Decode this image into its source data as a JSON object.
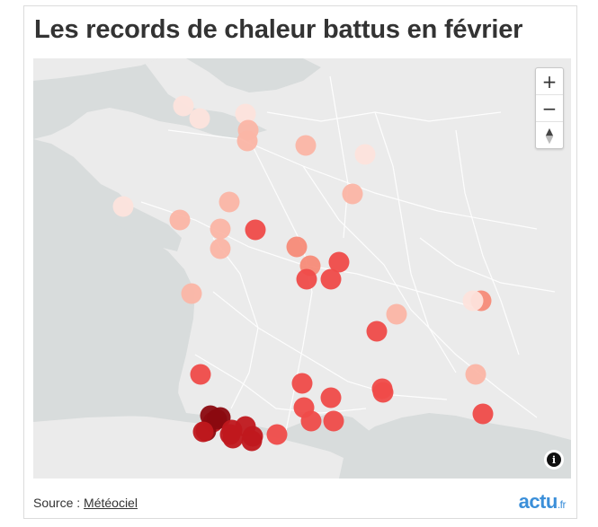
{
  "title": "Les records de chaleur battus en février",
  "footer": {
    "source_prefix": "Source :",
    "source_link": "Météociel"
  },
  "logo": {
    "main": "actu",
    "suffix": ".fr"
  },
  "map": {
    "controls": {
      "zoom_in": "+",
      "zoom_out": "−",
      "compass_icon": "compass-icon",
      "info_icon": "info-icon"
    },
    "colors": {
      "land": "#ebebeb",
      "sea": "#d8dcdc",
      "roads": "#ffffff",
      "markers": [
        "#fde3dc",
        "#fbb5a5",
        "#f78b78",
        "#ef4b49",
        "#c0181d",
        "#8b0a10"
      ]
    },
    "markers_count": 47
  }
}
